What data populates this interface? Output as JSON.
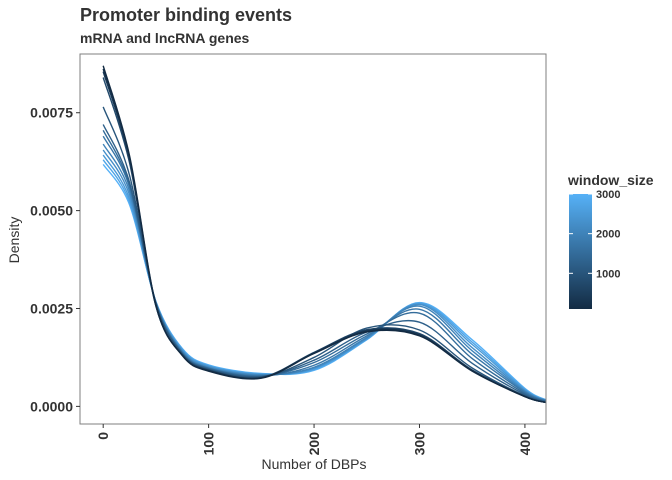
{
  "chart_data": {
    "type": "line",
    "title": "Promoter binding events",
    "subtitle": "mRNA and lncRNA genes",
    "xlabel": "Number of DBPs",
    "ylabel": "Density",
    "xlim": [
      -22,
      420
    ],
    "ylim": [
      -0.00045,
      0.009
    ],
    "x_ticks": [
      0,
      100,
      200,
      300,
      400
    ],
    "x_tick_labels": [
      "0",
      "100",
      "200",
      "300",
      "400"
    ],
    "y_ticks": [
      0.0,
      0.0025,
      0.005,
      0.0075
    ],
    "y_tick_labels": [
      "0.0000",
      "0.0025",
      "0.0050",
      "0.0075"
    ],
    "grid": false,
    "legend": {
      "title": "window_size",
      "position": "right",
      "range": [
        100,
        3000
      ],
      "breaks": [
        1000,
        2000,
        3000
      ],
      "break_labels": [
        "1000",
        "2000",
        "3000"
      ],
      "color_low": "#132B43",
      "color_high": "#56B1F7"
    },
    "x": [
      0,
      25,
      50,
      75,
      100,
      150,
      200,
      250,
      300,
      350,
      400,
      420
    ],
    "series": [
      {
        "window_size": 100,
        "values": [
          0.0087,
          0.0064,
          0.0026,
          0.0013,
          0.0009,
          0.00072,
          0.00135,
          0.0019,
          0.0018,
          0.0009,
          0.00025,
          0.0001
        ]
      },
      {
        "window_size": 250,
        "values": [
          0.00862,
          0.00635,
          0.00258,
          0.0013,
          0.00091,
          0.00073,
          0.00136,
          0.00192,
          0.00182,
          0.00091,
          0.00025,
          0.0001
        ]
      },
      {
        "window_size": 500,
        "values": [
          0.00855,
          0.0063,
          0.00257,
          0.00131,
          0.00092,
          0.00073,
          0.00137,
          0.00194,
          0.00184,
          0.00092,
          0.00025,
          0.0001
        ]
      },
      {
        "window_size": 750,
        "values": [
          0.0084,
          0.00622,
          0.00256,
          0.00132,
          0.00093,
          0.00074,
          0.00138,
          0.00196,
          0.00186,
          0.00093,
          0.00026,
          0.0001
        ]
      },
      {
        "window_size": 1000,
        "values": [
          0.00765,
          0.0059,
          0.00262,
          0.00134,
          0.00094,
          0.00075,
          0.00125,
          0.002,
          0.00195,
          0.00098,
          0.00027,
          0.00011
        ]
      },
      {
        "window_size": 1250,
        "values": [
          0.0072,
          0.00572,
          0.00262,
          0.00135,
          0.00096,
          0.00076,
          0.00118,
          0.0019,
          0.00215,
          0.0011,
          0.0003,
          0.00012
        ]
      },
      {
        "window_size": 1500,
        "values": [
          0.00705,
          0.00565,
          0.00264,
          0.00136,
          0.00097,
          0.00077,
          0.00112,
          0.00185,
          0.00238,
          0.00122,
          0.00033,
          0.00013
        ]
      },
      {
        "window_size": 1750,
        "values": [
          0.0069,
          0.0056,
          0.00265,
          0.00138,
          0.00098,
          0.00078,
          0.00105,
          0.0018,
          0.00248,
          0.00133,
          0.00036,
          0.00014
        ]
      },
      {
        "window_size": 2000,
        "values": [
          0.0067,
          0.0055,
          0.00265,
          0.0014,
          0.00099,
          0.0008,
          0.001,
          0.00176,
          0.00256,
          0.00142,
          0.00038,
          0.00015
        ]
      },
      {
        "window_size": 2250,
        "values": [
          0.00655,
          0.0054,
          0.00266,
          0.00142,
          0.00101,
          0.00081,
          0.00098,
          0.00174,
          0.0026,
          0.0015,
          0.0004,
          0.00015
        ]
      },
      {
        "window_size": 2500,
        "values": [
          0.00642,
          0.0053,
          0.00266,
          0.00144,
          0.00103,
          0.00082,
          0.00096,
          0.00172,
          0.00262,
          0.00158,
          0.00042,
          0.00016
        ]
      },
      {
        "window_size": 2750,
        "values": [
          0.0063,
          0.00522,
          0.00267,
          0.00146,
          0.00104,
          0.00083,
          0.00094,
          0.00171,
          0.00264,
          0.00164,
          0.00044,
          0.00016
        ]
      },
      {
        "window_size": 3000,
        "values": [
          0.00618,
          0.00515,
          0.00268,
          0.00148,
          0.00106,
          0.00084,
          0.00092,
          0.0017,
          0.00265,
          0.0017,
          0.00046,
          0.00017
        ]
      }
    ]
  }
}
